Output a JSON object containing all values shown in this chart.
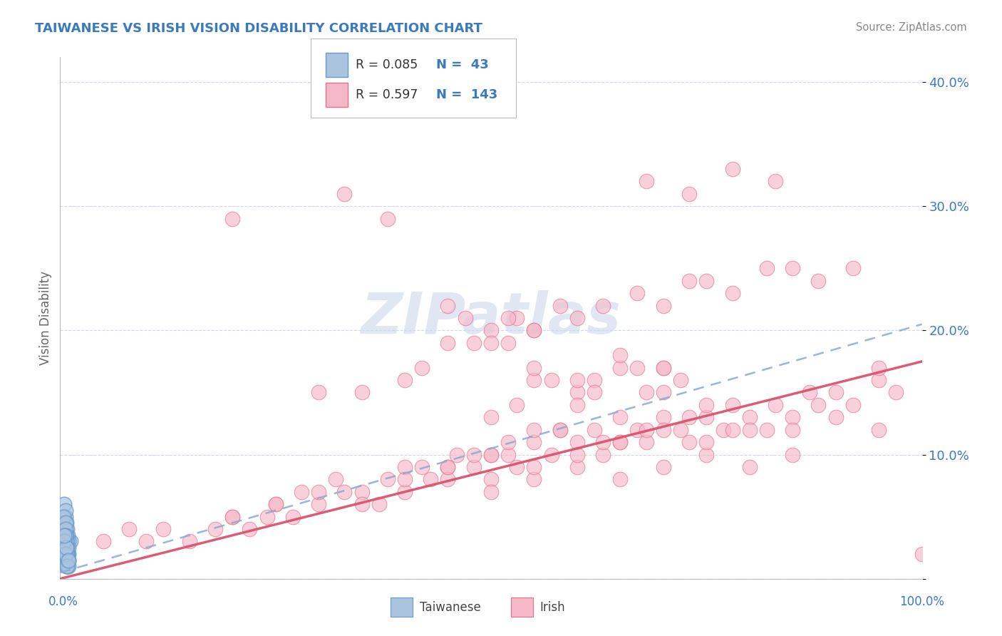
{
  "title": "TAIWANESE VS IRISH VISION DISABILITY CORRELATION CHART",
  "source": "Source: ZipAtlas.com",
  "ylabel": "Vision Disability",
  "r_taiwanese": 0.085,
  "n_taiwanese": 43,
  "r_irish": 0.597,
  "n_irish": 143,
  "taiwanese_color": "#aac4e0",
  "taiwanese_edge_color": "#6699cc",
  "irish_color": "#f5b8c8",
  "irish_edge_color": "#e8708a",
  "irish_line_color": "#d9546e",
  "taiwanese_line_color": "#88aacc",
  "title_color": "#3a7abf",
  "axis_color": "#3a7abf",
  "background_color": "#ffffff",
  "grid_color": "#c8d4e8",
  "watermark_color": "#ccd8ec",
  "tw_x": [
    0.005,
    0.008,
    0.01,
    0.006,
    0.012,
    0.007,
    0.004,
    0.009,
    0.005,
    0.006,
    0.008,
    0.01,
    0.007,
    0.005,
    0.009,
    0.006,
    0.008,
    0.004,
    0.01,
    0.007,
    0.005,
    0.008,
    0.006,
    0.009,
    0.007,
    0.005,
    0.01,
    0.006,
    0.008,
    0.007,
    0.005,
    0.009,
    0.006,
    0.008,
    0.01,
    0.007,
    0.005,
    0.009,
    0.006,
    0.008,
    0.007,
    0.005,
    0.01
  ],
  "tw_y": [
    0.06,
    0.04,
    0.02,
    0.05,
    0.03,
    0.045,
    0.025,
    0.035,
    0.015,
    0.055,
    0.02,
    0.03,
    0.01,
    0.04,
    0.02,
    0.03,
    0.015,
    0.05,
    0.025,
    0.035,
    0.015,
    0.02,
    0.045,
    0.01,
    0.03,
    0.02,
    0.015,
    0.04,
    0.025,
    0.03,
    0.02,
    0.015,
    0.035,
    0.02,
    0.01,
    0.025,
    0.03,
    0.015,
    0.02,
    0.01,
    0.025,
    0.035,
    0.015
  ],
  "ir_x": [
    0.05,
    0.08,
    0.1,
    0.12,
    0.15,
    0.18,
    0.2,
    0.22,
    0.24,
    0.25,
    0.27,
    0.28,
    0.3,
    0.32,
    0.33,
    0.35,
    0.37,
    0.38,
    0.4,
    0.42,
    0.43,
    0.45,
    0.46,
    0.48,
    0.5,
    0.5,
    0.52,
    0.53,
    0.55,
    0.57,
    0.58,
    0.6,
    0.62,
    0.63,
    0.65,
    0.67,
    0.68,
    0.7,
    0.72,
    0.73,
    0.75,
    0.77,
    0.78,
    0.8,
    0.82,
    0.83,
    0.85,
    0.87,
    0.88,
    0.9,
    0.92,
    0.95,
    0.97,
    0.55,
    0.6,
    0.62,
    0.65,
    0.68,
    0.7,
    0.72,
    0.45,
    0.5,
    0.52,
    0.55,
    0.47,
    0.5,
    0.53,
    0.35,
    0.4,
    0.42,
    0.3,
    0.33,
    0.38,
    0.2,
    0.45,
    0.48,
    0.52,
    0.55,
    0.58,
    0.6,
    0.63,
    0.67,
    0.7,
    0.73,
    0.75,
    0.78,
    0.82,
    0.85,
    0.88,
    0.92,
    0.95,
    0.2,
    0.25,
    0.3,
    0.35,
    0.4,
    0.45,
    0.5,
    0.55,
    0.6,
    0.65,
    0.7,
    0.75,
    0.8,
    0.85,
    0.5,
    0.55,
    0.6,
    0.65,
    0.7,
    0.75,
    0.55,
    0.6,
    0.65,
    0.7,
    0.53,
    0.57,
    0.62,
    0.67,
    0.48,
    0.52,
    0.58,
    0.63,
    0.68,
    0.73,
    0.78,
    0.4,
    0.45,
    0.5,
    0.55,
    0.6,
    0.65,
    0.7,
    0.75,
    0.8,
    0.85,
    0.9,
    0.95,
    1.0,
    0.68,
    0.73,
    0.78,
    0.83
  ],
  "ir_y": [
    0.03,
    0.04,
    0.03,
    0.04,
    0.03,
    0.04,
    0.05,
    0.04,
    0.05,
    0.06,
    0.05,
    0.07,
    0.06,
    0.08,
    0.07,
    0.07,
    0.06,
    0.08,
    0.09,
    0.09,
    0.08,
    0.09,
    0.1,
    0.09,
    0.1,
    0.08,
    0.1,
    0.09,
    0.11,
    0.1,
    0.12,
    0.11,
    0.12,
    0.1,
    0.11,
    0.12,
    0.11,
    0.13,
    0.12,
    0.11,
    0.13,
    0.12,
    0.14,
    0.13,
    0.12,
    0.14,
    0.13,
    0.15,
    0.14,
    0.15,
    0.14,
    0.16,
    0.15,
    0.16,
    0.15,
    0.16,
    0.17,
    0.15,
    0.17,
    0.16,
    0.19,
    0.2,
    0.19,
    0.2,
    0.21,
    0.19,
    0.21,
    0.15,
    0.16,
    0.17,
    0.15,
    0.31,
    0.29,
    0.29,
    0.22,
    0.19,
    0.21,
    0.2,
    0.22,
    0.21,
    0.22,
    0.23,
    0.22,
    0.24,
    0.24,
    0.23,
    0.25,
    0.25,
    0.24,
    0.25,
    0.17,
    0.05,
    0.06,
    0.07,
    0.06,
    0.07,
    0.08,
    0.07,
    0.08,
    0.09,
    0.08,
    0.09,
    0.1,
    0.09,
    0.1,
    0.13,
    0.12,
    0.14,
    0.13,
    0.15,
    0.14,
    0.17,
    0.16,
    0.18,
    0.17,
    0.14,
    0.16,
    0.15,
    0.17,
    0.1,
    0.11,
    0.12,
    0.11,
    0.12,
    0.13,
    0.12,
    0.08,
    0.09,
    0.1,
    0.09,
    0.1,
    0.11,
    0.12,
    0.11,
    0.12,
    0.12,
    0.13,
    0.12,
    0.02,
    0.32,
    0.31,
    0.33,
    0.32
  ],
  "irish_trend_x0": 0.0,
  "irish_trend_y0": 0.0,
  "irish_trend_x1": 1.0,
  "irish_trend_y1": 0.175,
  "tw_trend_x0": 0.0,
  "tw_trend_y0": 0.005,
  "tw_trend_x1": 1.0,
  "tw_trend_y1": 0.205,
  "xlim": [
    0.0,
    1.0
  ],
  "ylim": [
    0.0,
    0.42
  ],
  "yticks": [
    0.0,
    0.1,
    0.2,
    0.3,
    0.4
  ],
  "ytick_labels": [
    "",
    "10.0%",
    "20.0%",
    "30.0%",
    "40.0%"
  ]
}
